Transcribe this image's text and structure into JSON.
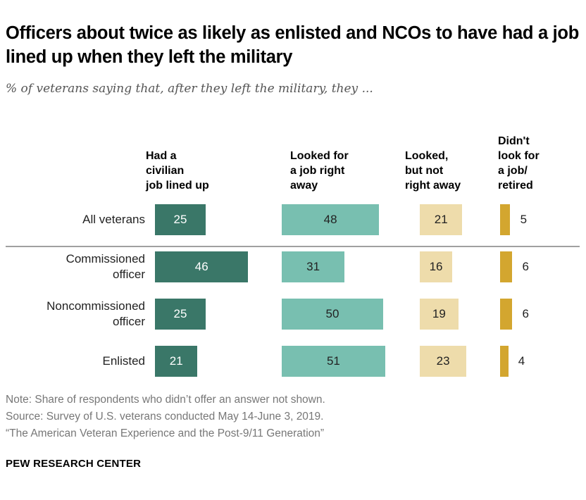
{
  "title": "Officers about twice as likely as enlisted and NCOs to have had a job lined up when they left the military",
  "subtitle": "% of veterans saying that, after they left the military, they ...",
  "chart_data": {
    "type": "bar",
    "orientation": "horizontal-grouped-columns",
    "categories": [
      "All veterans",
      "Commissioned officer",
      "Noncommissioned officer",
      "Enlisted"
    ],
    "category_lines": [
      [
        "All veterans"
      ],
      [
        "Commissioned",
        "officer"
      ],
      [
        "Noncommissioned",
        "officer"
      ],
      [
        "Enlisted"
      ]
    ],
    "series": [
      {
        "name": "Had a civilian job lined up",
        "name_lines": [
          "Had a",
          "civilian",
          "job lined up"
        ],
        "color": "#3a7768",
        "text_color": "#ffffff",
        "values": [
          25,
          46,
          25,
          21
        ]
      },
      {
        "name": "Looked for a job right away",
        "name_lines": [
          "Looked for",
          "a job right",
          "away"
        ],
        "color": "#78bfb0",
        "text_color": "#222222",
        "values": [
          48,
          31,
          50,
          51
        ]
      },
      {
        "name": "Looked, but not right away",
        "name_lines": [
          "Looked,",
          "but not",
          "right away"
        ],
        "color": "#eedcab",
        "text_color": "#222222",
        "values": [
          21,
          16,
          19,
          23
        ]
      },
      {
        "name": "Didn't look for a job/ retired",
        "name_lines": [
          "Didn't",
          "look for",
          "a job/",
          "retired"
        ],
        "color": "#d3a62f",
        "text_color": "#222222",
        "values": [
          5,
          6,
          6,
          4
        ],
        "labels_outside": true
      }
    ],
    "grid": false,
    "legend": "column headers"
  },
  "notes": [
    "Note: Share of respondents who didn’t offer an answer not shown.",
    "Source: Survey of U.S. veterans conducted May 14-June 3, 2019.",
    "“The American Veteran Experience and the Post-9/11 Generation”"
  ],
  "brand": "PEW RESEARCH CENTER"
}
